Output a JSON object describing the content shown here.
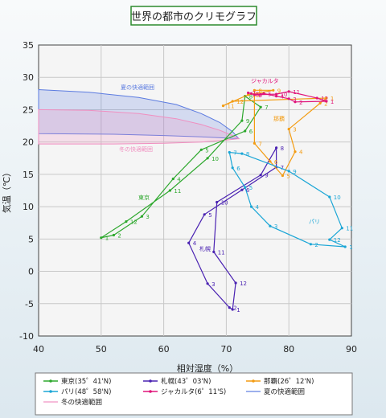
{
  "chart_data": {
    "type": "line",
    "title": "世界の都市のクリモグラフ",
    "xlabel": "相対湿度（%）",
    "ylabel": "気温（℃）",
    "xlim": [
      40,
      90
    ],
    "ylim": [
      -10,
      35
    ],
    "x_ticks": [
      "40",
      "50",
      "60",
      "70",
      "80",
      "90"
    ],
    "y_ticks": [
      "-10",
      "-5",
      "0",
      "5",
      "10",
      "15",
      "20",
      "25",
      "30",
      "35"
    ],
    "grid": true,
    "legend_position": "bottom",
    "series": [
      {
        "name": "東京(35゜41'N)",
        "color": "#2ea82e",
        "label": "東京",
        "months": [
          "1",
          "2",
          "3",
          "4",
          "5",
          "6",
          "7",
          "8",
          "9",
          "10",
          "11",
          "12"
        ],
        "x": [
          50,
          52,
          56.5,
          61.5,
          66,
          73,
          75.5,
          73,
          72.5,
          67,
          61,
          54
        ],
        "y": [
          5.2,
          5.6,
          8.5,
          14.3,
          18.8,
          21.7,
          25.4,
          27.1,
          23.3,
          17.5,
          12.5,
          7.7
        ]
      },
      {
        "name": "札幌(43゜03'N)",
        "color": "#4a22b2",
        "label": "札幌",
        "months": [
          "1",
          "2",
          "3",
          "4",
          "5",
          "6",
          "7",
          "8",
          "9",
          "10",
          "11",
          "12"
        ],
        "x": [
          71,
          70.5,
          67,
          64,
          66.5,
          72.5,
          78,
          78,
          75.5,
          68.5,
          68,
          71.5
        ],
        "y": [
          -5.9,
          -5.6,
          -1.9,
          4.4,
          8.8,
          12.6,
          16.1,
          19.1,
          14.9,
          10.7,
          3.0,
          -1.8
        ]
      },
      {
        "name": "那覇(26゜12'N)",
        "color": "#f39c12",
        "label": "那覇",
        "months": [
          "1",
          "2",
          "3",
          "4",
          "5",
          "6",
          "7",
          "8",
          "9",
          "10",
          "11",
          "12"
        ],
        "x": [
          86,
          85,
          80,
          81,
          79,
          77,
          74.5,
          74.5,
          77.5,
          73.5,
          69.5,
          71
        ],
        "y": [
          26.8,
          26.0,
          22.0,
          18.5,
          14.8,
          17.0,
          19.8,
          28.0,
          28.0,
          27.3,
          25.6,
          26.3
        ]
      },
      {
        "name": "パリ(48゜58'N)",
        "color": "#1ba6d6",
        "label": "パリ",
        "months": [
          "1",
          "2",
          "3",
          "4",
          "5",
          "6",
          "7",
          "8",
          "9",
          "10",
          "11",
          "12"
        ],
        "x": [
          89,
          83.5,
          77,
          74,
          73,
          71,
          70.5,
          72.5,
          80,
          86.5,
          88.5,
          86.5
        ],
        "y": [
          3.8,
          4.2,
          7.0,
          10.0,
          13.0,
          16.0,
          18.4,
          18.2,
          15.5,
          11.5,
          6.7,
          4.9
        ]
      },
      {
        "name": "ジャカルタ(6゜11'S)",
        "color": "#e0157a",
        "label": "ジャカルタ",
        "months": [
          "1",
          "2",
          "3",
          "4",
          "5",
          "6",
          "7",
          "8",
          "9",
          "10",
          "11",
          "12"
        ],
        "x": [
          86,
          81,
          80,
          78,
          76,
          74.5,
          73.5,
          74,
          74.5,
          78,
          80,
          84.5
        ],
        "y": [
          26.3,
          26.2,
          26.7,
          27.1,
          27.5,
          27.3,
          27.6,
          27.5,
          27.3,
          27.4,
          27.8,
          26.8
        ]
      }
    ],
    "comfort_zones": [
      {
        "name": "夏の快適範囲",
        "color": "#5b7be0",
        "label": "夏の快適範囲",
        "upper": [
          [
            40,
            28.1
          ],
          [
            48,
            27.7
          ],
          [
            56,
            26.9
          ],
          [
            62,
            25.8
          ],
          [
            66,
            24.4
          ],
          [
            69,
            23.0
          ],
          [
            71,
            21.6
          ],
          [
            72,
            20.5
          ]
        ],
        "lower": [
          [
            72,
            20.5
          ],
          [
            70,
            20.6
          ],
          [
            66,
            20.8
          ],
          [
            60,
            21.0
          ],
          [
            52,
            21.2
          ],
          [
            40,
            21.3
          ]
        ]
      },
      {
        "name": "冬の快適範囲",
        "color": "#f08fc0",
        "label": "冬の快適範囲",
        "upper": [
          [
            40,
            25.0
          ],
          [
            48,
            24.9
          ],
          [
            56,
            24.4
          ],
          [
            62,
            23.6
          ],
          [
            66,
            22.7
          ],
          [
            69,
            21.8
          ],
          [
            71,
            21.0
          ],
          [
            72,
            20.5
          ]
        ],
        "lower": [
          [
            72,
            20.5
          ],
          [
            70,
            20.3
          ],
          [
            66,
            20.0
          ],
          [
            60,
            19.8
          ],
          [
            52,
            19.7
          ],
          [
            40,
            19.7
          ]
        ]
      }
    ]
  },
  "legend": {
    "items": [
      {
        "label": "東京(35゜41'N)",
        "color": "#2ea82e",
        "kind": "line"
      },
      {
        "label": "札幌(43゜03'N)",
        "color": "#4a22b2",
        "kind": "line"
      },
      {
        "label": "那覇(26゜12'N)",
        "color": "#f39c12",
        "kind": "line"
      },
      {
        "label": "パリ(48゜58'N)",
        "color": "#1ba6d6",
        "kind": "line"
      },
      {
        "label": "ジャカルタ(6゜11'S)",
        "color": "#e0157a",
        "kind": "line"
      },
      {
        "label": "夏の快適範囲",
        "color": "#5b7be0",
        "kind": "zone"
      },
      {
        "label": "冬の快適範囲",
        "color": "#f08fc0",
        "kind": "zone"
      }
    ]
  }
}
